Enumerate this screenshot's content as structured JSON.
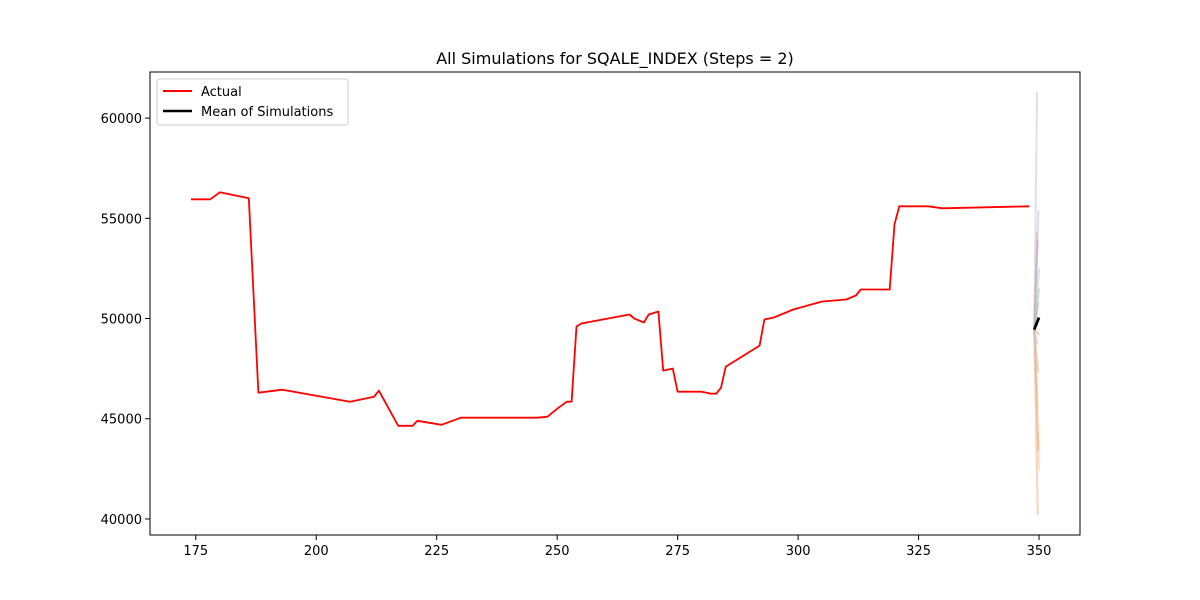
{
  "chart_data": {
    "type": "line",
    "title": "All Simulations for SQALE_INDEX (Steps = 2)",
    "xlabel": "",
    "ylabel": "",
    "xlim": [
      165.5,
      358.5
    ],
    "ylim": [
      39200,
      62300
    ],
    "grid": false,
    "legend_position": "top-left",
    "x_ticks": [
      175,
      200,
      225,
      250,
      275,
      300,
      325,
      350
    ],
    "y_ticks": [
      40000,
      45000,
      50000,
      55000,
      60000
    ],
    "x_tick_labels": [
      "175",
      "200",
      "225",
      "250",
      "275",
      "300",
      "325",
      "350"
    ],
    "y_tick_labels": [
      "40000",
      "45000",
      "50000",
      "55000",
      "60000"
    ],
    "legend": [
      {
        "label": "Actual",
        "color": "#ff0000"
      },
      {
        "label": "Mean of Simulations",
        "color": "#000000"
      }
    ],
    "series": [
      {
        "name": "Actual",
        "color": "#ff0000",
        "x": [
          174,
          178,
          180,
          186,
          188,
          193,
          207,
          212,
          213,
          217,
          220,
          221,
          226,
          230,
          246,
          248,
          250,
          252,
          253,
          254,
          255,
          265,
          266,
          268,
          269,
          271,
          272,
          274,
          275,
          280,
          282,
          283,
          284,
          285,
          292,
          293,
          295,
          299,
          305,
          310,
          312,
          313,
          319,
          320,
          321,
          327,
          330,
          348
        ],
        "y": [
          55950,
          55950,
          56300,
          56000,
          46300,
          46450,
          45850,
          46100,
          46400,
          44650,
          44650,
          44900,
          44700,
          45050,
          45050,
          45100,
          45500,
          45850,
          45850,
          49600,
          49750,
          50200,
          50000,
          49800,
          50200,
          50350,
          47400,
          47500,
          46350,
          46350,
          46250,
          46250,
          46550,
          47600,
          48650,
          49950,
          50050,
          50450,
          50850,
          50950,
          51150,
          51450,
          51450,
          54700,
          55600,
          55600,
          55500,
          55600
        ]
      },
      {
        "name": "Mean of Simulations",
        "color": "#000000",
        "x": [
          349,
          350
        ],
        "y": [
          49450,
          50050
        ]
      }
    ],
    "simulations": [
      {
        "color": "#c8c8c8",
        "y_end": 61300
      },
      {
        "color": "#f4b183",
        "y_end": 40200
      },
      {
        "color": "#a9c8e8",
        "y_end": 55400
      },
      {
        "color": "#f8c8a0",
        "y_end": 42400
      },
      {
        "color": "#e8a8a8",
        "y_end": 54300
      },
      {
        "color": "#c0a8d8",
        "y_end": 53900
      },
      {
        "color": "#f0a070",
        "y_end": 43400
      },
      {
        "color": "#a8d8a8",
        "y_end": 52500
      },
      {
        "color": "#f8d0a8",
        "y_end": 44400
      },
      {
        "color": "#b8c8d8",
        "y_end": 48700
      },
      {
        "color": "#d8b8a8",
        "y_end": 47300
      },
      {
        "color": "#a8c8a8",
        "y_end": 51500
      },
      {
        "color": "#e8c0c0",
        "y_end": 46300
      },
      {
        "color": "#c8c8a0",
        "y_end": 45500
      },
      {
        "color": "#b0b0d0",
        "y_end": 50800
      },
      {
        "color": "#d8a890",
        "y_end": 49200
      }
    ]
  }
}
